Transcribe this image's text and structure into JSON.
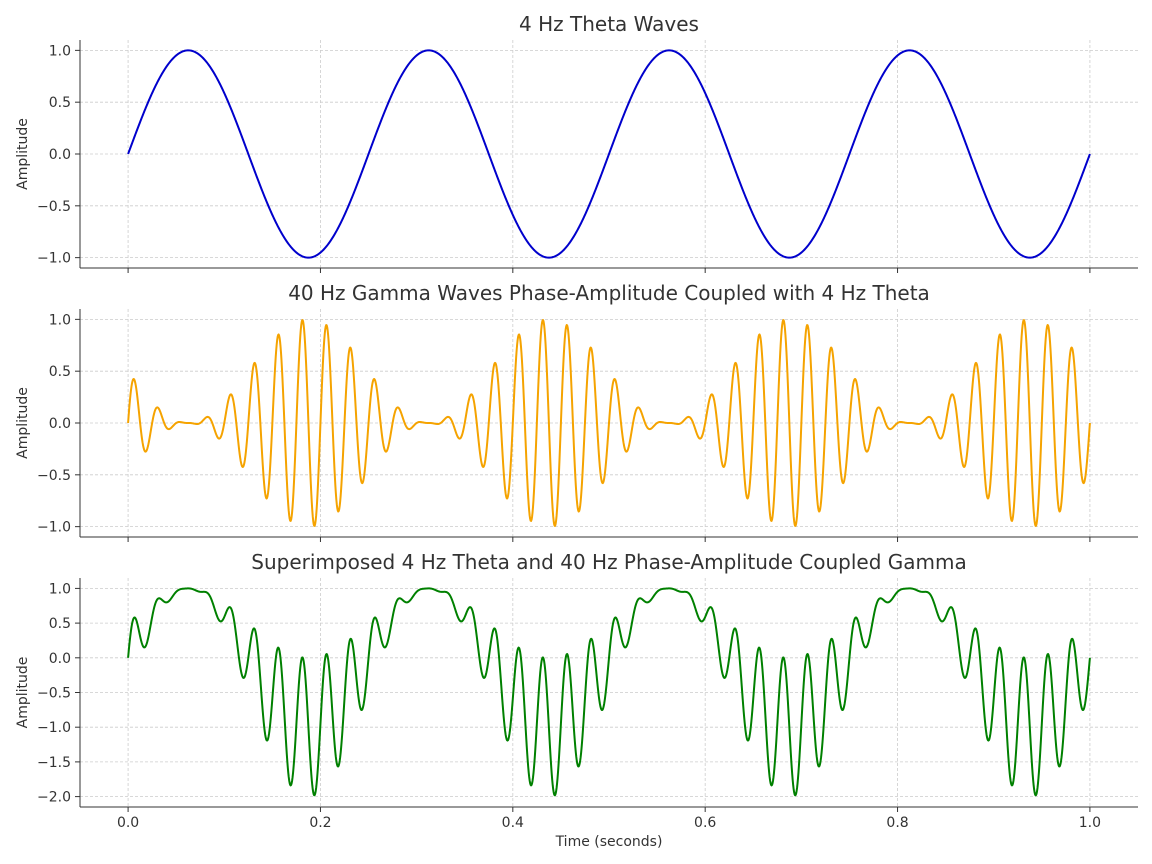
{
  "chart_data": [
    {
      "type": "line",
      "title": "4 Hz Theta Waves",
      "xlabel": "",
      "ylabel": "Amplitude",
      "xlim": [
        -0.05,
        1.05
      ],
      "ylim": [
        -1.1,
        1.1
      ],
      "xticks": [
        0.0,
        0.2,
        0.4,
        0.6,
        0.8,
        1.0
      ],
      "xtick_labels_visible": false,
      "yticks": [
        1.0,
        0.5,
        0.0,
        -0.5,
        -1.0
      ],
      "ytick_labels": [
        "1.0",
        "0.5",
        "0.0",
        "−0.5",
        "−1.0"
      ],
      "grid": true,
      "color": "#0000cc",
      "series": [
        {
          "formula": "sin(2*pi*4*t)",
          "x_range": [
            0,
            1
          ],
          "samples": 2000
        }
      ]
    },
    {
      "type": "line",
      "title": "40 Hz Gamma Waves Phase-Amplitude Coupled with 4 Hz Theta",
      "xlabel": "",
      "ylabel": "Amplitude",
      "xlim": [
        -0.05,
        1.05
      ],
      "ylim": [
        -1.1,
        1.1
      ],
      "xticks": [
        0.0,
        0.2,
        0.4,
        0.6,
        0.8,
        1.0
      ],
      "xtick_labels_visible": false,
      "yticks": [
        1.0,
        0.5,
        0.0,
        -0.5,
        -1.0
      ],
      "ytick_labels": [
        "1.0",
        "0.5",
        "0.0",
        "−0.5",
        "−1.0"
      ],
      "grid": true,
      "color": "#f5a300",
      "series": [
        {
          "formula": "((1 - sin(2*pi*4*t)) / 2) * sin(2*pi*40*t)",
          "x_range": [
            0,
            1
          ],
          "samples": 2000
        }
      ]
    },
    {
      "type": "line",
      "title": "Superimposed 4 Hz Theta and 40 Hz Phase-Amplitude Coupled Gamma",
      "xlabel": "Time (seconds)",
      "ylabel": "Amplitude",
      "xlim": [
        -0.05,
        1.05
      ],
      "ylim": [
        -2.15,
        1.15
      ],
      "xticks": [
        0.0,
        0.2,
        0.4,
        0.6,
        0.8,
        1.0
      ],
      "xtick_labels": [
        "0.0",
        "0.2",
        "0.4",
        "0.6",
        "0.8",
        "1.0"
      ],
      "xtick_labels_visible": true,
      "yticks": [
        1.0,
        0.5,
        0.0,
        -0.5,
        -1.0,
        -1.5,
        -2.0
      ],
      "ytick_labels": [
        "1.0",
        "0.5",
        "0.0",
        "−0.5",
        "−1.0",
        "−1.5",
        "−2.0"
      ],
      "grid": true,
      "color": "#008000",
      "series": [
        {
          "formula": "sin(2*pi*4*t) + ((1 - sin(2*pi*4*t)) / 2) * sin(2*pi*40*t)",
          "x_range": [
            0,
            1
          ],
          "samples": 2000
        }
      ]
    }
  ]
}
